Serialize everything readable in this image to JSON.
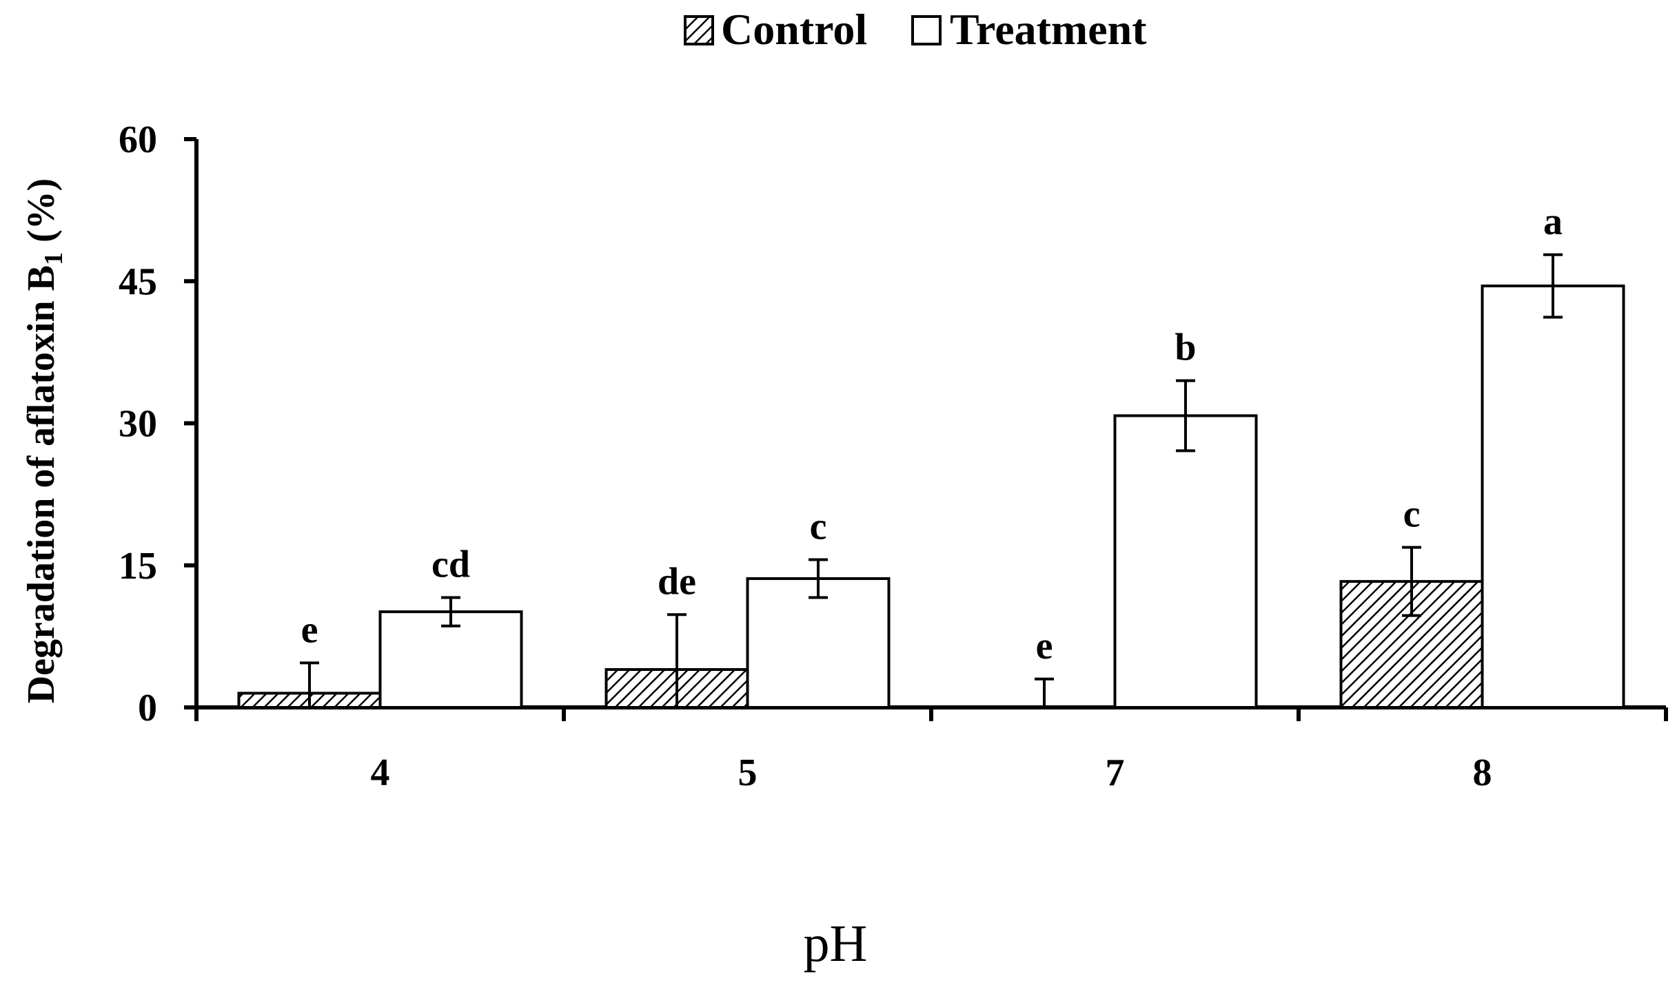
{
  "chart_data": {
    "type": "bar",
    "title": "",
    "xlabel": "pH",
    "ylabel_main": "Degradation of aflatoxin B",
    "ylabel_sub": "1",
    "ylabel_suffix": " (%)",
    "categories": [
      "4",
      "5",
      "7",
      "8"
    ],
    "ylim": [
      0,
      60
    ],
    "yticks": [
      0,
      15,
      30,
      45,
      60
    ],
    "grid": false,
    "legend_position": "top-center",
    "series": [
      {
        "name": "Control",
        "pattern": "hatched",
        "values": [
          1.5,
          4.0,
          0.0,
          13.3
        ],
        "errors": [
          3.2,
          5.8,
          3.0,
          3.6
        ],
        "letters": [
          "e",
          "de",
          "e",
          "c"
        ]
      },
      {
        "name": "Treatment",
        "pattern": "white",
        "values": [
          10.1,
          13.6,
          30.8,
          44.5
        ],
        "errors": [
          1.5,
          2.0,
          3.7,
          3.3
        ],
        "letters": [
          "cd",
          "c",
          "b",
          "a"
        ]
      }
    ]
  }
}
